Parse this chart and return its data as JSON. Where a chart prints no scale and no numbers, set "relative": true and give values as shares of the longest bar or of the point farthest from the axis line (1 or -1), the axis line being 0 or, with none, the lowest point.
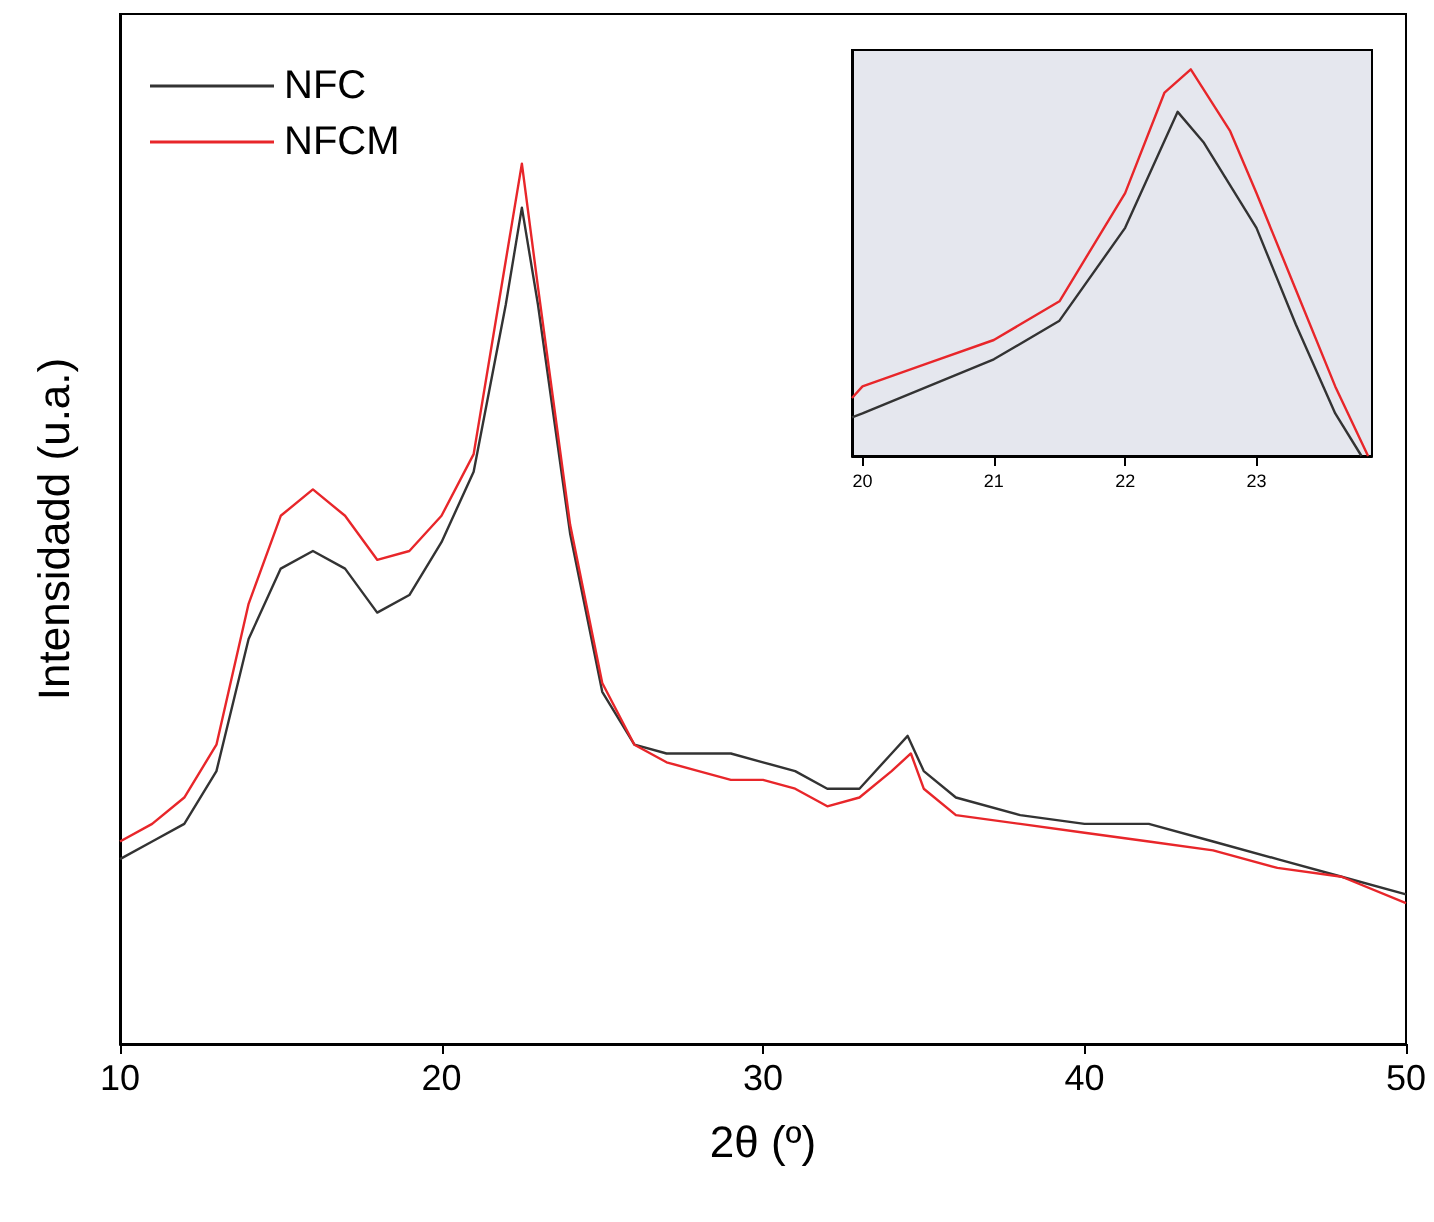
{
  "chart_data": [
    {
      "type": "line",
      "xlabel": "2θ (º)",
      "ylabel": "Intensidadd (u.a.)",
      "relative": true,
      "xlim": [
        10,
        50
      ],
      "xticks": [
        10,
        20,
        30,
        40,
        50
      ],
      "tick_labels": "x",
      "legend": "top left",
      "grid": false,
      "series": [
        {
          "name": "NFC",
          "color": "#333333",
          "x": [
            10,
            11,
            12,
            13,
            14,
            15,
            16,
            17,
            18,
            19,
            20,
            21,
            22,
            22.5,
            23,
            24,
            25,
            26,
            27,
            28,
            29,
            30,
            31,
            32,
            33,
            34,
            34.5,
            35,
            36,
            38,
            40,
            42,
            44,
            46,
            48,
            50
          ],
          "values": [
            0.21,
            0.23,
            0.25,
            0.31,
            0.46,
            0.54,
            0.56,
            0.54,
            0.49,
            0.51,
            0.57,
            0.65,
            0.84,
            0.95,
            0.84,
            0.58,
            0.4,
            0.34,
            0.33,
            0.33,
            0.33,
            0.32,
            0.31,
            0.29,
            0.29,
            0.33,
            0.35,
            0.31,
            0.28,
            0.26,
            0.25,
            0.25,
            0.23,
            0.21,
            0.19,
            0.17
          ]
        },
        {
          "name": "NFCM",
          "color": "#e8262a",
          "x": [
            10,
            11,
            12,
            13,
            14,
            15,
            16,
            17,
            18,
            19,
            20,
            21,
            22,
            22.5,
            23,
            24,
            25,
            26,
            27,
            28,
            29,
            30,
            31,
            32,
            33,
            34,
            34.6,
            35,
            36,
            38,
            40,
            42,
            44,
            46,
            48,
            50
          ],
          "values": [
            0.23,
            0.25,
            0.28,
            0.34,
            0.5,
            0.6,
            0.63,
            0.6,
            0.55,
            0.56,
            0.6,
            0.67,
            0.89,
            1,
            0.86,
            0.59,
            0.41,
            0.34,
            0.32,
            0.31,
            0.3,
            0.3,
            0.29,
            0.27,
            0.28,
            0.31,
            0.33,
            0.29,
            0.26,
            0.25,
            0.24,
            0.23,
            0.22,
            0.2,
            0.19,
            0.16
          ]
        }
      ]
    },
    {
      "type": "line",
      "relative": true,
      "xlim": [
        19.92,
        23.88
      ],
      "xticks": [
        20,
        21,
        22,
        23
      ],
      "tick_labels": "x",
      "grid": false,
      "series": [
        {
          "color": "#333333",
          "x": [
            19.92,
            20,
            20.5,
            21,
            21.5,
            22,
            22.4,
            22.6,
            23,
            23.3,
            23.6,
            23.8
          ],
          "values": [
            0.1,
            0.11,
            0.18,
            0.25,
            0.35,
            0.59,
            0.89,
            0.81,
            0.59,
            0.34,
            0.11,
            0
          ]
        },
        {
          "color": "#e8262a",
          "x": [
            19.92,
            20,
            20.5,
            21,
            21.5,
            22,
            22.3,
            22.5,
            22.8,
            23,
            23.3,
            23.6,
            23.85
          ],
          "values": [
            0.15,
            0.18,
            0.24,
            0.3,
            0.4,
            0.68,
            0.94,
            1,
            0.84,
            0.68,
            0.43,
            0.18,
            0
          ]
        }
      ]
    }
  ]
}
